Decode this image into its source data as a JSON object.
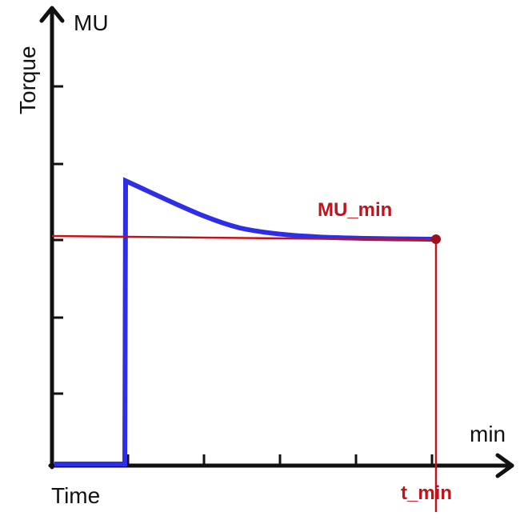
{
  "axes": {
    "y_unit": "MU",
    "y_label": "Torque",
    "x_unit": "min",
    "x_label": "Time"
  },
  "annotations": {
    "mu_min": "MU_min",
    "t_min": "t_min"
  }
}
